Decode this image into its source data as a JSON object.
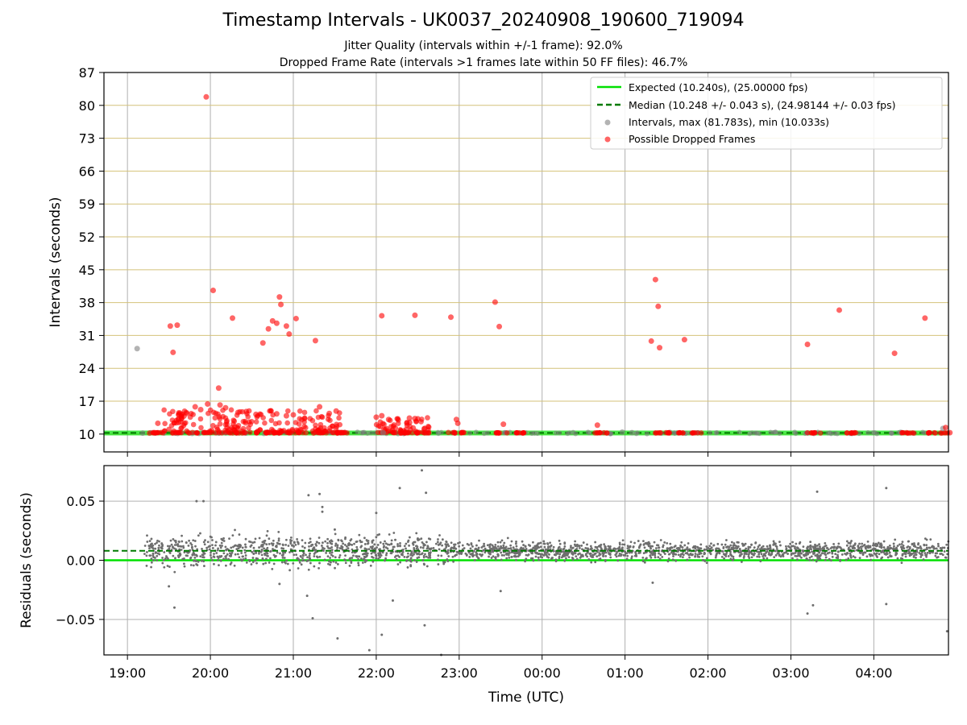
{
  "figure": {
    "title": "Timestamp Intervals - UK0037_20240908_190600_719094",
    "subtitle_1": "Jitter Quality (intervals within +/-1 frame): 92.0%",
    "subtitle_2": "Dropped Frame Rate (intervals >1 frames late within 50 FF files): 46.7%"
  },
  "legend": {
    "expected": "Expected (10.240s), (25.00000 fps)",
    "median": "Median (10.248 +/- 0.043 s), (24.98144 +/- 0.03 fps)",
    "intervals": "Intervals, max (81.783s), min (10.033s)",
    "dropped": "Possible Dropped Frames"
  },
  "colors": {
    "expected": "#00e000",
    "median": "#007a00",
    "intervals": "#808080",
    "dropped": "#ff0000",
    "band_lines": "#d4c27a",
    "grid": "#b0b0b0"
  },
  "chart_data": [
    {
      "type": "scatter",
      "panel": "top",
      "ylabel": "Intervals (seconds)",
      "ylim": [
        6.2,
        87
      ],
      "yticks": [
        10,
        17,
        24,
        31,
        38,
        45,
        52,
        59,
        66,
        73,
        80,
        87
      ],
      "xlim": [
        "18:43",
        "04:54"
      ],
      "xticks": [
        "19:00",
        "20:00",
        "21:00",
        "22:00",
        "23:00",
        "00:00",
        "01:00",
        "02:00",
        "03:00",
        "04:00"
      ],
      "grid": true,
      "legend_position": "top-right",
      "expected": 10.24,
      "median": 10.248,
      "series": [
        {
          "name": "Intervals, max (81.783s), min (10.033s)",
          "points": [
            [
              "19:07",
              28.2
            ],
            [
              "19:11",
              10.2
            ],
            [
              "22:05",
              10.3
            ],
            [
              "00:58",
              10.4
            ],
            [
              "01:05",
              10.3
            ],
            [
              "04:50",
              11.2
            ]
          ]
        },
        {
          "name": "Possible Dropped Frames",
          "points": [
            [
              "19:57",
              81.8
            ],
            [
              "20:02",
              40.6
            ],
            [
              "20:16",
              34.7
            ],
            [
              "19:31",
              33.0
            ],
            [
              "19:36",
              33.2
            ],
            [
              "19:33",
              27.4
            ],
            [
              "20:50",
              39.2
            ],
            [
              "20:51",
              37.6
            ],
            [
              "20:45",
              34.1
            ],
            [
              "20:48",
              33.6
            ],
            [
              "20:55",
              33.0
            ],
            [
              "20:57",
              31.3
            ],
            [
              "20:42",
              32.4
            ],
            [
              "20:38",
              29.4
            ],
            [
              "21:02",
              34.6
            ],
            [
              "21:16",
              29.9
            ],
            [
              "22:04",
              35.2
            ],
            [
              "22:28",
              35.3
            ],
            [
              "22:54",
              34.9
            ],
            [
              "23:26",
              38.1
            ],
            [
              "23:29",
              32.9
            ],
            [
              "01:22",
              42.9
            ],
            [
              "01:24",
              37.2
            ],
            [
              "01:25",
              28.4
            ],
            [
              "01:19",
              29.8
            ],
            [
              "01:43",
              30.1
            ],
            [
              "03:12",
              29.1
            ],
            [
              "03:35",
              36.4
            ],
            [
              "04:15",
              27.2
            ],
            [
              "04:37",
              34.7
            ],
            [
              "20:06",
              19.8
            ],
            [
              "19:58",
              16.4
            ],
            [
              "20:07",
              16.2
            ],
            [
              "20:11",
              15.6
            ],
            [
              "19:49",
              15.8
            ],
            [
              "19:53",
              15.2
            ],
            [
              "20:20",
              14.6
            ],
            [
              "20:26",
              14.8
            ],
            [
              "20:33",
              14.2
            ],
            [
              "20:48",
              14.3
            ],
            [
              "20:55",
              13.9
            ],
            [
              "21:00",
              14.1
            ],
            [
              "21:19",
              15.8
            ],
            [
              "21:26",
              14.4
            ],
            [
              "21:31",
              14.9
            ],
            [
              "22:00",
              13.6
            ],
            [
              "22:04",
              13.9
            ],
            [
              "22:09",
              13.1
            ],
            [
              "22:24",
              13.4
            ],
            [
              "22:28",
              13.3
            ],
            [
              "22:58",
              13.1
            ],
            [
              "22:59",
              12.3
            ],
            [
              "23:32",
              12.1
            ],
            [
              "00:40",
              11.9
            ],
            [
              "19:22",
              12.3
            ],
            [
              "19:39",
              13.7
            ],
            [
              "19:43",
              14.4
            ],
            [
              "04:52",
              11.4
            ],
            [
              "19:16",
              10.2
            ],
            [
              "04:55",
              10.3
            ]
          ]
        }
      ]
    },
    {
      "type": "scatter",
      "panel": "bottom",
      "ylabel": "Residuals (seconds)",
      "xlabel": "Time (UTC)",
      "ylim": [
        -0.08,
        0.08
      ],
      "yticks": [
        -0.05,
        0.0,
        0.05
      ],
      "ytick_labels": [
        "−0.05",
        "0.00",
        "0.05"
      ],
      "xlim": [
        "18:43",
        "04:54"
      ],
      "xticks": [
        "19:00",
        "20:00",
        "21:00",
        "22:00",
        "23:00",
        "00:00",
        "01:00",
        "02:00",
        "03:00",
        "04:00"
      ],
      "grid": true,
      "expected_residual": 0.0,
      "median_residual": 0.008,
      "series": [
        {
          "name": "Residuals",
          "points": [
            [
              "19:50",
              0.05
            ],
            [
              "19:55",
              0.05
            ],
            [
              "21:11",
              0.055
            ],
            [
              "21:19",
              0.056
            ],
            [
              "21:21",
              0.045
            ],
            [
              "21:21",
              0.041
            ],
            [
              "22:17",
              0.061
            ],
            [
              "22:33",
              0.076
            ],
            [
              "22:36",
              0.057
            ],
            [
              "22:00",
              0.04
            ],
            [
              "21:30",
              0.026
            ],
            [
              "19:30",
              -0.022
            ],
            [
              "19:34",
              -0.04
            ],
            [
              "20:50",
              -0.02
            ],
            [
              "21:10",
              -0.03
            ],
            [
              "21:14",
              -0.049
            ],
            [
              "21:32",
              -0.066
            ],
            [
              "21:55",
              -0.076
            ],
            [
              "22:04",
              -0.063
            ],
            [
              "22:12",
              -0.034
            ],
            [
              "22:35",
              -0.055
            ],
            [
              "22:47",
              -0.08
            ],
            [
              "23:30",
              -0.026
            ],
            [
              "01:20",
              -0.019
            ],
            [
              "03:12",
              -0.045
            ],
            [
              "03:16",
              -0.038
            ],
            [
              "03:19",
              0.058
            ],
            [
              "04:09",
              0.061
            ],
            [
              "04:09",
              -0.037
            ],
            [
              "04:53",
              -0.06
            ]
          ]
        }
      ]
    }
  ]
}
